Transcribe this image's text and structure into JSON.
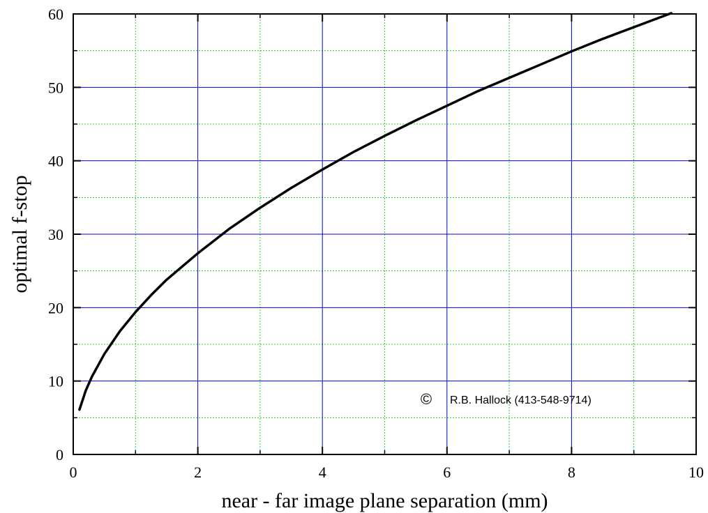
{
  "chart_data": {
    "type": "line",
    "xlabel": "near - far image plane separation (mm)",
    "ylabel": "optimal f-stop",
    "xlim": [
      0,
      10
    ],
    "ylim": [
      0,
      60
    ],
    "x_ticks": [
      0,
      2,
      4,
      6,
      8,
      10
    ],
    "y_ticks": [
      0,
      10,
      20,
      30,
      40,
      50,
      60
    ],
    "grid": true,
    "grid_major_color": "#0000cc",
    "grid_minor_color": "#33cc33",
    "series": [
      {
        "color": "#000000",
        "x": [
          0.1,
          0.2,
          0.3,
          0.5,
          0.75,
          1.0,
          1.25,
          1.5,
          2.0,
          2.5,
          3.0,
          3.5,
          4.0,
          4.5,
          5.0,
          5.5,
          6.0,
          6.5,
          7.0,
          7.5,
          8.0,
          8.5,
          9.0,
          9.6
        ],
        "y": [
          6.1,
          8.7,
          10.6,
          13.7,
          16.8,
          19.4,
          21.7,
          23.8,
          27.4,
          30.7,
          33.6,
          36.3,
          38.8,
          41.2,
          43.4,
          45.5,
          47.5,
          49.5,
          51.3,
          53.1,
          54.9,
          56.6,
          58.2,
          60.1
        ]
      }
    ]
  },
  "annotation": {
    "symbol": "©",
    "text": "R.B. Hallock (413-548-9714)"
  }
}
